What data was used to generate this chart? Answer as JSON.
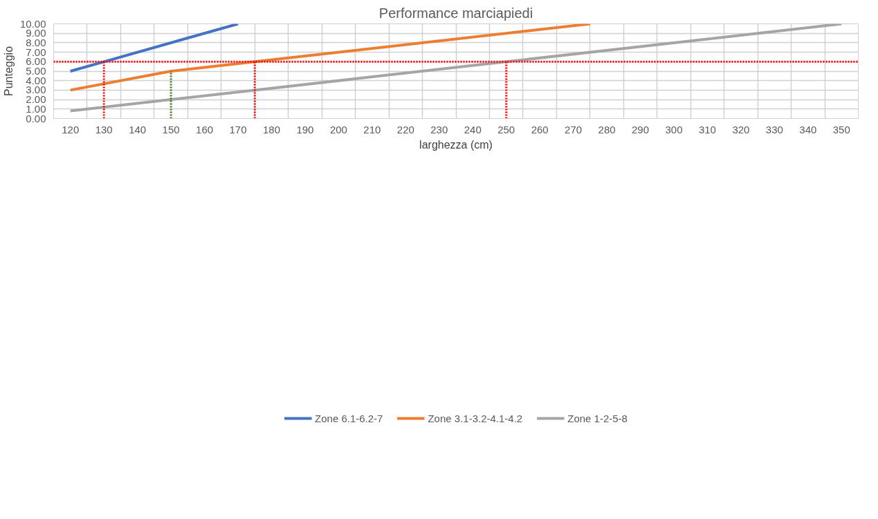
{
  "chart_data": {
    "type": "line",
    "title": "Performance marciapiedi",
    "xlabel": "larghezza (cm)",
    "ylabel": "Punteggio",
    "xlim": [
      115,
      355
    ],
    "xticks": [
      {
        "value": 115,
        "label": null
      },
      120,
      {
        "value": 125,
        "label": null
      },
      130,
      {
        "value": 135,
        "label": null
      },
      140,
      {
        "value": 145,
        "label": null
      },
      150,
      {
        "value": 155,
        "label": null
      },
      160,
      {
        "value": 165,
        "label": null
      },
      170,
      {
        "value": 175,
        "label": null
      },
      180,
      {
        "value": 185,
        "label": null
      },
      190,
      {
        "value": 195,
        "label": null
      },
      200,
      {
        "value": 205,
        "label": null
      },
      210,
      {
        "value": 215,
        "label": null
      },
      220,
      {
        "value": 225,
        "label": null
      },
      230,
      {
        "value": 235,
        "label": null
      },
      240,
      {
        "value": 245,
        "label": null
      },
      250,
      {
        "value": 255,
        "label": null
      },
      260,
      {
        "value": 265,
        "label": null
      },
      270,
      {
        "value": 275,
        "label": null
      },
      280,
      {
        "value": 285,
        "label": null
      },
      290,
      {
        "value": 295,
        "label": null
      },
      300,
      {
        "value": 305,
        "label": null
      },
      310,
      {
        "value": 315,
        "label": null
      },
      320,
      {
        "value": 325,
        "label": null
      },
      330,
      {
        "value": 335,
        "label": null
      },
      340,
      {
        "value": 345,
        "label": null
      },
      350,
      {
        "value": 355,
        "label": null
      }
    ],
    "ylim": [
      0,
      10
    ],
    "yticks": [
      {
        "value": 0,
        "label": "0.00"
      },
      {
        "value": 1,
        "label": "1.00"
      },
      {
        "value": 2,
        "label": "2.00"
      },
      {
        "value": 3,
        "label": "3.00"
      },
      {
        "value": 4,
        "label": "4.00"
      },
      {
        "value": 5,
        "label": "5.00"
      },
      {
        "value": 6,
        "label": "6.00"
      },
      {
        "value": 7,
        "label": "7.00"
      },
      {
        "value": 8,
        "label": "8.00"
      },
      {
        "value": 9,
        "label": "9.00"
      },
      {
        "value": 10,
        "label": "10.00"
      }
    ],
    "grid": true,
    "legend": "bottom",
    "line_style": "solid",
    "series": [
      {
        "name": "Zone 6.1-6.2-7",
        "color": "#4472c4",
        "x": [
          120,
          130,
          170
        ],
        "values": [
          5,
          6,
          10
        ]
      },
      {
        "name": "Zone 3.1-3.2-4.1-4.2",
        "color": "#ed7d31",
        "x": [
          120,
          150,
          175,
          275
        ],
        "values": [
          3,
          5,
          6,
          10
        ]
      },
      {
        "name": "Zone 1-2-5-8",
        "color": "#a5a5a5",
        "x": [
          120,
          150,
          175,
          250,
          350
        ],
        "values": [
          0.8,
          2,
          3,
          6,
          10
        ]
      },
      {
        "color": "#ff0000",
        "line_style": "dotted",
        "x": [
          130,
          130
        ],
        "values": [
          0,
          6
        ]
      },
      {
        "color": "#ff0000",
        "line_style": "dotted",
        "x": [
          175,
          175
        ],
        "values": [
          0,
          6
        ]
      },
      {
        "color": "#ff0000",
        "line_style": "dotted",
        "x": [
          250,
          250
        ],
        "values": [
          0,
          6
        ]
      },
      {
        "color": "#38761d",
        "line_style": "dotted",
        "x": [
          150,
          150
        ],
        "values": [
          0,
          5
        ]
      }
    ],
    "ref_lines": [
      {
        "axis": "y",
        "value": 6,
        "color": "#ff0000",
        "line_style": "dotted"
      }
    ]
  }
}
